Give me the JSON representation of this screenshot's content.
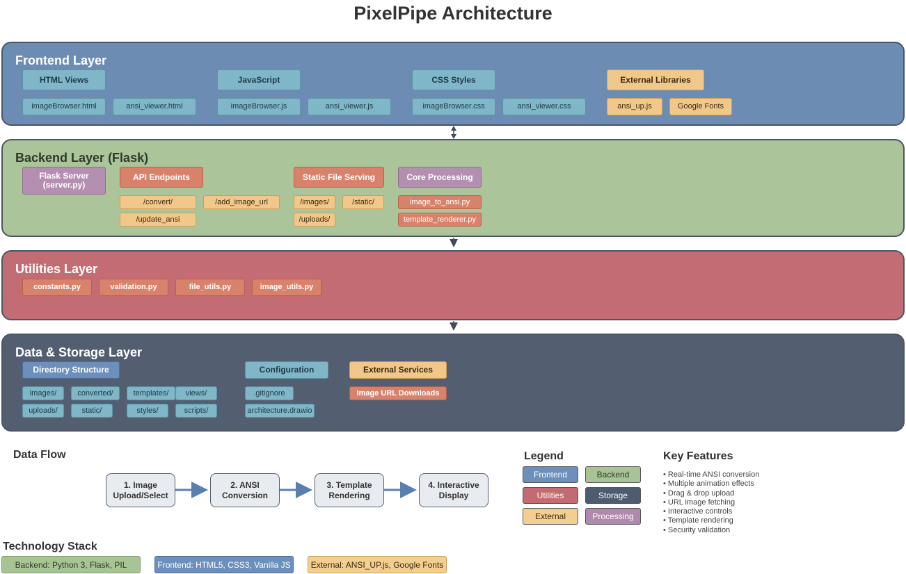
{
  "title": "PixelPipe Architecture",
  "frontend": {
    "title": "Frontend Layer",
    "html_views": "HTML Views",
    "javascript": "JavaScript",
    "css_styles": "CSS Styles",
    "external_libraries": "External Libraries",
    "files": [
      "imageBrowser.html",
      "ansi_viewer.html",
      "imageBrowser.js",
      "ansi_viewer.js",
      "imageBrowser.css",
      "ansi_viewer.css",
      "ansi_up.js",
      "Google Fonts"
    ]
  },
  "backend": {
    "title": "Backend Layer (Flask)",
    "flask_server": "Flask Server\n(server.py)",
    "api_endpoints": "API Endpoints",
    "static_file_serving": "Static File Serving",
    "core_processing": "Core Processing",
    "endpoints": [
      "/convert/",
      "/add_image_url",
      "/update_ansi"
    ],
    "static_paths": [
      "/images/",
      "/static/",
      "/uploads/"
    ],
    "core_files": [
      "image_to_ansi.py",
      "template_renderer.py"
    ]
  },
  "utilities": {
    "title": "Utilities Layer",
    "files": [
      "constants.py",
      "validation.py",
      "file_utils.py",
      "image_utils.py"
    ]
  },
  "storage": {
    "title": "Data & Storage Layer",
    "directory_structure": "Directory Structure",
    "configuration": "Configuration",
    "external_services": "External Services",
    "dirs": [
      "images/",
      "converted/",
      "templates/",
      "views/",
      "uploads/",
      "static/",
      "styles/",
      "scripts/"
    ],
    "config_files": [
      ".gitignore",
      "architecture.drawio"
    ],
    "service": "Image URL Downloads"
  },
  "data_flow": {
    "title": "Data Flow",
    "steps": [
      "1. Image\nUpload/Select",
      "2. ANSI\nConversion",
      "3. Template\nRendering",
      "4. Interactive\nDisplay"
    ]
  },
  "legend": {
    "title": "Legend",
    "items": [
      "Frontend",
      "Backend",
      "Utilities",
      "Storage",
      "External",
      "Processing"
    ],
    "colors": [
      "#6d8fbb",
      "#a8c494",
      "#c46b71",
      "#4f5b70",
      "#f2cf90",
      "#b08aac"
    ]
  },
  "key_features": {
    "title": "Key Features",
    "items": [
      "• Real-time ANSI conversion",
      "• Multiple animation effects",
      "• Drag & drop upload",
      "• URL image fetching",
      "• Interactive controls",
      "• Template rendering",
      "• Security validation"
    ]
  },
  "tech_stack": {
    "title": "Technology Stack",
    "backend": "Backend: Python 3, Flask, PIL",
    "frontend": "Frontend: HTML5, CSS3, Vanilla JS",
    "external": "External: ANSI_UP.js, Google Fonts"
  },
  "colors": {
    "frontend_layer": "#6d8cb4",
    "backend_layer": "#abc49a",
    "utilities_layer": "#c46c73",
    "storage_layer": "#535e71"
  }
}
